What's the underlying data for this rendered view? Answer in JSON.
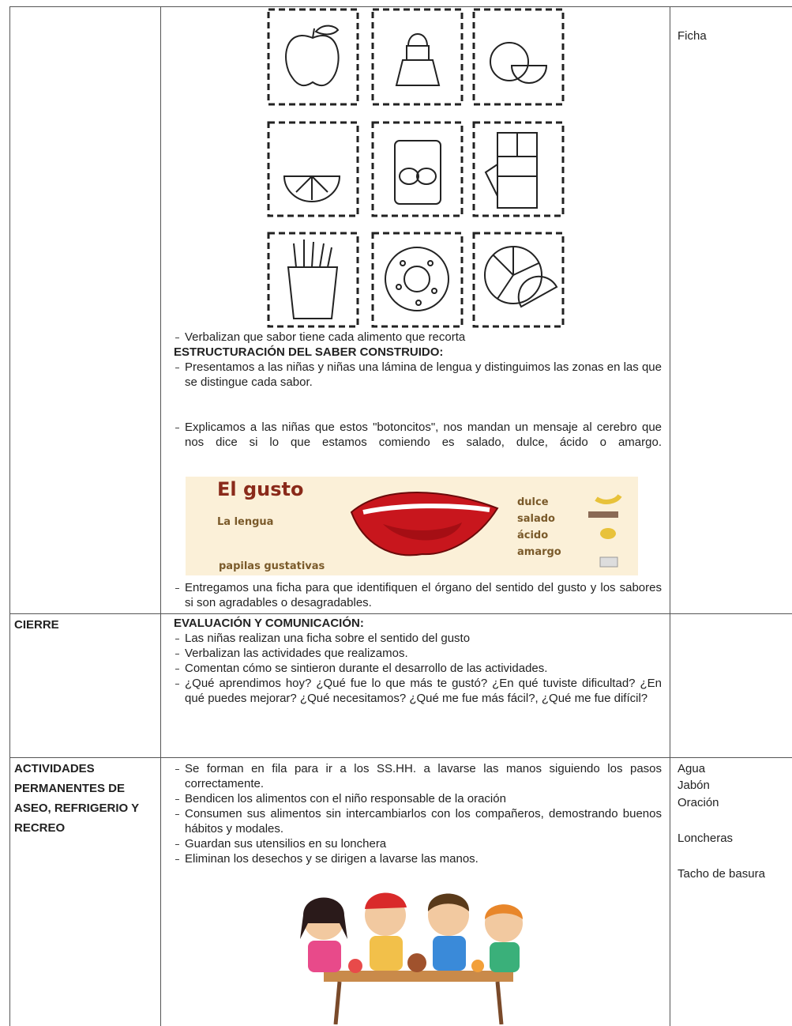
{
  "row1": {
    "materials": "Ficha",
    "verbalize": "Verbalizan que sabor tiene cada alimento que recorta",
    "heading": "ESTRUCTURACIÓN DEL SABER CONSTRUIDO:",
    "items": [
      "Presentamos a las niñas y niñas una lámina de lengua y distinguimos las zonas en las que se distingue cada sabor.",
      "Explicamos a las niñas que estos \"botoncitos\", nos mandan un mensaje al cerebro que nos dice si lo que estamos comiendo es salado, dulce, ácido o amargo."
    ],
    "image": {
      "title": "El gusto",
      "organ": "La lengua",
      "flavors": [
        "dulce",
        "salado",
        "ácido",
        "amargo"
      ],
      "caption": "papilas gustativas"
    },
    "closing": "Entregamos una ficha para que identifiquen el órgano del sentido del gusto y los sabores si son agradables o desagradables."
  },
  "row2": {
    "phase": "CIERRE",
    "heading": "EVALUACIÓN Y COMUNICACIÓN:",
    "items": [
      "Las niñas realizan una ficha sobre el sentido del gusto",
      "Verbalizan las actividades que realizamos.",
      "Comentan cómo se sintieron durante el desarrollo de las actividades.",
      "¿Qué aprendimos hoy? ¿Qué fue lo que más te gustó? ¿En qué tuviste dificultad? ¿En qué puedes mejorar? ¿Qué necesitamos? ¿Qué me fue más fácil?, ¿Qué me fue difícil?"
    ]
  },
  "row3": {
    "phase": "ACTIVIDADES PERMANENTES DE ASEO, REFRIGERIO Y RECREO",
    "items": [
      "Se forman en fila para ir a los SS.HH. a lavarse las manos siguiendo los pasos correctamente.",
      "Bendicen los alimentos con el niño responsable de la oración",
      "Consumen sus alimentos sin intercambiarlos con los compañeros, demostrando buenos hábitos y modales.",
      "Guardan sus utensilios en su lonchera",
      "Eliminan los desechos y se dirigen a lavarse las manos."
    ],
    "materials": [
      "Agua",
      "Jabón",
      "Oración",
      "Loncheras",
      "Tacho de basura"
    ]
  }
}
